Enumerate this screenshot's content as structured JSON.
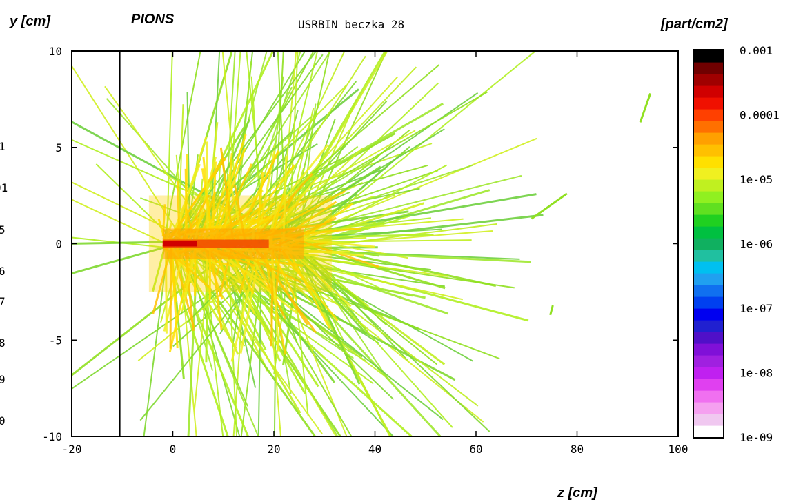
{
  "labels": {
    "y_axis": "y [cm]",
    "x_axis": "z [cm]",
    "particle": "PIONS",
    "title": "USRBIN beczka 28",
    "colorbar_unit": "[part/cm2]"
  },
  "left_edge_fragments": [
    "1",
    "01",
    "5",
    "6",
    "7",
    "8",
    "9",
    "0"
  ],
  "chart_data": {
    "type": "heatmap",
    "title": "USRBIN beczka 28",
    "xlabel": "z [cm]",
    "ylabel": "y [cm]",
    "xlim": [
      -20,
      100
    ],
    "ylim": [
      -10,
      10
    ],
    "x_ticks": [
      "-20",
      "0",
      "20",
      "40",
      "60",
      "80",
      "100"
    ],
    "y_ticks": [
      "10",
      "5",
      "0",
      "-5",
      "-10"
    ],
    "vertical_line_z": -10.5,
    "hotspot": {
      "z_from": -2,
      "z_to": 26,
      "y": 0,
      "peak_value": 0.0001
    },
    "colorbar": {
      "unit": "[part/cm2]",
      "scale": "log",
      "min": 1e-09,
      "max": 0.001,
      "tick_labels": [
        "0.001",
        "0.0001",
        "1e-05",
        "1e-06",
        "1e-07",
        "1e-08",
        "1e-09"
      ],
      "colors": [
        "#ffffff",
        "#f0c8f0",
        "#f5a0f0",
        "#f070f0",
        "#e040f0",
        "#c020f0",
        "#a020e0",
        "#8010d8",
        "#5010c8",
        "#2020d0",
        "#0000f0",
        "#0040f0",
        "#1070f0",
        "#20a0f0",
        "#00c0f0",
        "#20c0a0",
        "#10b060",
        "#00c040",
        "#20d020",
        "#60e020",
        "#90f020",
        "#c0f020",
        "#f0f020",
        "#ffe000",
        "#ffc000",
        "#ffa000",
        "#ff7000",
        "#ff4000",
        "#f01000",
        "#d00000",
        "#a00000",
        "#700000",
        "#000000"
      ]
    }
  }
}
